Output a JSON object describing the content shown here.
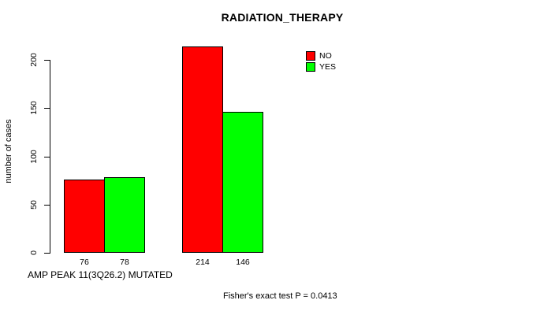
{
  "title": "RADIATION_THERAPY",
  "ylabel": "number of cases",
  "xlabel": "AMP PEAK 11(3Q26.2) MUTATED",
  "footnote": "Fisher's exact test P = 0.0413",
  "legend": {
    "position": "top-right",
    "items": [
      {
        "label": "NO",
        "color": "#ff0000"
      },
      {
        "label": "YES",
        "color": "#00ff00"
      }
    ]
  },
  "chart_data": {
    "type": "bar",
    "title": "RADIATION_THERAPY",
    "ylabel": "number of cases",
    "xlabel": "AMP PEAK 11(3Q26.2) MUTATED",
    "annotation": "Fisher's exact test P = 0.0413",
    "group_count": 2,
    "series": [
      {
        "name": "NO",
        "color": "#ff0000",
        "values": [
          76,
          214
        ]
      },
      {
        "name": "YES",
        "color": "#00ff00",
        "values": [
          78,
          146
        ]
      }
    ],
    "bar_value_labels": [
      [
        76,
        78
      ],
      [
        214,
        146
      ]
    ],
    "ylim": [
      0,
      200
    ],
    "yticks": [
      0,
      50,
      100,
      150,
      200
    ],
    "grid": false,
    "legend_position": "top-right"
  }
}
